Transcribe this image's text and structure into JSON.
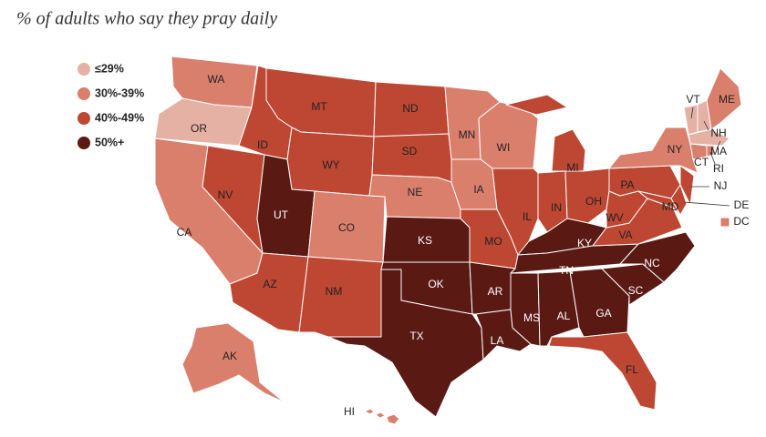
{
  "title": "% of adults who say they pray daily",
  "legend": {
    "items": [
      {
        "label": "≤29%",
        "color": "#e6b1a5",
        "states": [
          "OR",
          "VT",
          "NH",
          "MA"
        ]
      },
      {
        "label": "30%-39%",
        "color": "#db7f6d",
        "states": [
          "WA",
          "CA",
          "CO",
          "NE",
          "IA",
          "MN",
          "WI",
          "NY",
          "ME",
          "CT",
          "RI",
          "DC",
          "AK",
          "HI"
        ]
      },
      {
        "label": "40%-49%",
        "color": "#bd4732",
        "states": [
          "MT",
          "ID",
          "NV",
          "WY",
          "ND",
          "SD",
          "AZ",
          "NM",
          "MO",
          "IL",
          "IN",
          "MI",
          "OH",
          "PA",
          "WV",
          "VA",
          "MD",
          "DE",
          "NJ",
          "FL"
        ]
      },
      {
        "label": "50%+",
        "color": "#5a1913",
        "states": [
          "UT",
          "KS",
          "OK",
          "TX",
          "AR",
          "LA",
          "MS",
          "AL",
          "GA",
          "SC",
          "NC",
          "TN",
          "KY"
        ]
      }
    ]
  }
}
